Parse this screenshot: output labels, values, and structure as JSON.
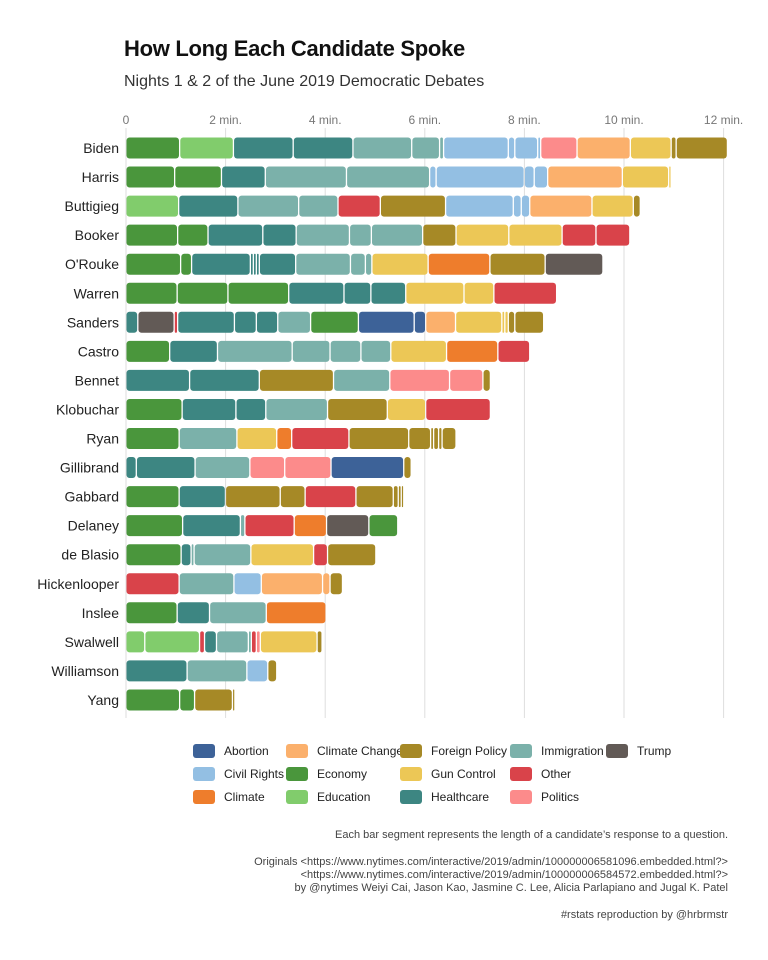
{
  "title": "How Long Each Candidate Spoke",
  "subtitle": "Nights 1 & 2 of the June 2019 Democratic Debates",
  "footnotes": {
    "line1": "Each bar segment represents the length of a candidate’s response to a question.",
    "line2": "Originals <https://www.nytimes.com/interactive/2019/admin/100000006581096.embedded.html?>",
    "line3": "<https://www.nytimes.com/interactive/2019/admin/100000006584572.embedded.html?>",
    "line4": "by @nytimes Weiyi Cai, Jason Kao, Jasmine C. Lee, Alicia Parlapiano and Jugal K. Patel",
    "line5": "#rstats reproduction by @hrbrmstr"
  },
  "colors": {
    "Abortion": "#3d6298",
    "Civil Rights": "#93bfe3",
    "Climate": "#ee7d2c",
    "Climate Change": "#fbb06c",
    "Economy": "#4a963c",
    "Education": "#81cc6c",
    "Foreign Policy": "#a68926",
    "Gun Control": "#ecc756",
    "Healthcare": "#3d8682",
    "Immigration": "#7bb1aa",
    "Other": "#d9434a",
    "Politics": "#fc8b8b",
    "Trump": "#625a56"
  },
  "legend": [
    [
      "Abortion",
      "Civil Rights",
      "Climate"
    ],
    [
      "Climate Change",
      "Economy",
      "Education"
    ],
    [
      "Foreign Policy",
      "Gun Control",
      "Healthcare"
    ],
    [
      "Immigration",
      "Other",
      "Politics"
    ],
    [
      "Trump"
    ]
  ],
  "chart_data": {
    "type": "bar",
    "orientation": "horizontal",
    "stacked": true,
    "x_unit": "minutes",
    "xlim": [
      0,
      12
    ],
    "x_ticks": [
      {
        "value": 0,
        "label": "0"
      },
      {
        "value": 2,
        "label": "2 min."
      },
      {
        "value": 4,
        "label": "4 min."
      },
      {
        "value": 6,
        "label": "6 min."
      },
      {
        "value": 8,
        "label": "8 min."
      },
      {
        "value": 10,
        "label": "10 min."
      },
      {
        "value": 12,
        "label": "12 min."
      }
    ],
    "grid": true,
    "legend_position": "bottom",
    "candidates": [
      {
        "name": "Biden",
        "segments": [
          [
            "Economy",
            1.08
          ],
          [
            "Education",
            1.08
          ],
          [
            "Healthcare",
            1.2
          ],
          [
            "Healthcare",
            1.2
          ],
          [
            "Immigration",
            1.18
          ],
          [
            "Immigration",
            0.56
          ],
          [
            "Immigration",
            0.08
          ],
          [
            "Civil Rights",
            1.3
          ],
          [
            "Civil Rights",
            0.13
          ],
          [
            "Civil Rights",
            0.46
          ],
          [
            "Civil Rights",
            0.06
          ],
          [
            "Politics",
            0.73
          ],
          [
            "Climate Change",
            1.07
          ],
          [
            "Gun Control",
            0.82
          ],
          [
            "Foreign Policy",
            0.1
          ],
          [
            "Foreign Policy",
            1.03
          ]
        ]
      },
      {
        "name": "Harris",
        "segments": [
          [
            "Economy",
            0.98
          ],
          [
            "Economy",
            0.94
          ],
          [
            "Healthcare",
            0.88
          ],
          [
            "Immigration",
            1.63
          ],
          [
            "Immigration",
            1.67
          ],
          [
            "Civil Rights",
            0.13
          ],
          [
            "Civil Rights",
            1.77
          ],
          [
            "Civil Rights",
            0.2
          ],
          [
            "Civil Rights",
            0.27
          ],
          [
            "Climate Change",
            1.5
          ],
          [
            "Gun Control",
            0.93
          ],
          [
            "Gun Control",
            0.04
          ]
        ]
      },
      {
        "name": "Buttigieg",
        "segments": [
          [
            "Education",
            1.06
          ],
          [
            "Healthcare",
            1.19
          ],
          [
            "Immigration",
            1.22
          ],
          [
            "Immigration",
            0.79
          ],
          [
            "Other",
            0.85
          ],
          [
            "Foreign Policy",
            1.31
          ],
          [
            "Civil Rights",
            1.36
          ],
          [
            "Civil Rights",
            0.16
          ],
          [
            "Civil Rights",
            0.17
          ],
          [
            "Climate Change",
            1.25
          ],
          [
            "Gun Control",
            0.83
          ],
          [
            "Foreign Policy",
            0.14
          ]
        ]
      },
      {
        "name": "Booker",
        "segments": [
          [
            "Economy",
            1.04
          ],
          [
            "Economy",
            0.61
          ],
          [
            "Healthcare",
            1.1
          ],
          [
            "Healthcare",
            0.67
          ],
          [
            "Immigration",
            1.07
          ],
          [
            "Immigration",
            0.44
          ],
          [
            "Immigration",
            1.03
          ],
          [
            "Foreign Policy",
            0.67
          ],
          [
            "Gun Control",
            1.06
          ],
          [
            "Gun Control",
            1.07
          ],
          [
            "Other",
            0.68
          ],
          [
            "Other",
            0.68
          ]
        ]
      },
      {
        "name": "O'Rouke",
        "segments": [
          [
            "Economy",
            1.1
          ],
          [
            "Economy",
            0.22
          ],
          [
            "Healthcare",
            1.18
          ],
          [
            "Healthcare",
            0.06
          ],
          [
            "Healthcare",
            0.06
          ],
          [
            "Healthcare",
            0.06
          ],
          [
            "Healthcare",
            0.73
          ],
          [
            "Immigration",
            1.1
          ],
          [
            "Immigration",
            0.3
          ],
          [
            "Immigration",
            0.13
          ],
          [
            "Gun Control",
            1.13
          ],
          [
            "Climate",
            1.24
          ],
          [
            "Foreign Policy",
            1.11
          ],
          [
            "Trump",
            1.16
          ]
        ]
      },
      {
        "name": "Warren",
        "segments": [
          [
            "Economy",
            1.03
          ],
          [
            "Economy",
            1.02
          ],
          [
            "Economy",
            1.22
          ],
          [
            "Healthcare",
            1.11
          ],
          [
            "Healthcare",
            0.54
          ],
          [
            "Healthcare",
            0.7
          ],
          [
            "Gun Control",
            1.17
          ],
          [
            "Gun Control",
            0.6
          ],
          [
            "Other",
            1.26
          ]
        ]
      },
      {
        "name": "Sanders",
        "segments": [
          [
            "Healthcare",
            0.24
          ],
          [
            "Trump",
            0.73
          ],
          [
            "Other",
            0.07
          ],
          [
            "Healthcare",
            1.14
          ],
          [
            "Healthcare",
            0.44
          ],
          [
            "Healthcare",
            0.43
          ],
          [
            "Immigration",
            0.66
          ],
          [
            "Economy",
            0.96
          ],
          [
            "Abortion",
            1.12
          ],
          [
            "Abortion",
            0.23
          ],
          [
            "Climate Change",
            0.6
          ],
          [
            "Gun Control",
            0.93
          ],
          [
            "Gun Control",
            0.06
          ],
          [
            "Gun Control",
            0.07
          ],
          [
            "Foreign Policy",
            0.13
          ],
          [
            "Foreign Policy",
            0.58
          ]
        ]
      },
      {
        "name": "Castro",
        "segments": [
          [
            "Economy",
            0.88
          ],
          [
            "Healthcare",
            0.96
          ],
          [
            "Immigration",
            1.5
          ],
          [
            "Immigration",
            0.76
          ],
          [
            "Immigration",
            0.62
          ],
          [
            "Immigration",
            0.6
          ],
          [
            "Gun Control",
            1.12
          ],
          [
            "Climate",
            1.03
          ],
          [
            "Other",
            0.64
          ]
        ]
      },
      {
        "name": "Bennet",
        "segments": [
          [
            "Healthcare",
            1.28
          ],
          [
            "Healthcare",
            1.4
          ],
          [
            "Foreign Policy",
            1.49
          ],
          [
            "Immigration",
            1.13
          ],
          [
            "Politics",
            1.2
          ],
          [
            "Politics",
            0.67
          ],
          [
            "Foreign Policy",
            0.15
          ]
        ]
      },
      {
        "name": "Klobuchar",
        "segments": [
          [
            "Economy",
            1.13
          ],
          [
            "Healthcare",
            1.08
          ],
          [
            "Healthcare",
            0.6
          ],
          [
            "Immigration",
            1.24
          ],
          [
            "Foreign Policy",
            1.2
          ],
          [
            "Gun Control",
            0.77
          ],
          [
            "Other",
            1.3
          ]
        ]
      },
      {
        "name": "Ryan",
        "segments": [
          [
            "Economy",
            1.07
          ],
          [
            "Immigration",
            1.16
          ],
          [
            "Gun Control",
            0.8
          ],
          [
            "Climate",
            0.3
          ],
          [
            "Other",
            1.15
          ],
          [
            "Foreign Policy",
            1.2
          ],
          [
            "Foreign Policy",
            0.44
          ],
          [
            "Foreign Policy",
            0.06
          ],
          [
            "Foreign Policy",
            0.1
          ],
          [
            "Foreign Policy",
            0.07
          ],
          [
            "Foreign Policy",
            0.28
          ]
        ]
      },
      {
        "name": "Gillibrand",
        "segments": [
          [
            "Healthcare",
            0.21
          ],
          [
            "Healthcare",
            1.18
          ],
          [
            "Immigration",
            1.1
          ],
          [
            "Politics",
            0.7
          ],
          [
            "Politics",
            0.93
          ],
          [
            "Abortion",
            1.46
          ],
          [
            "Foreign Policy",
            0.15
          ]
        ]
      },
      {
        "name": "Gabbard",
        "segments": [
          [
            "Economy",
            1.07
          ],
          [
            "Healthcare",
            0.93
          ],
          [
            "Foreign Policy",
            1.1
          ],
          [
            "Foreign Policy",
            0.5
          ],
          [
            "Other",
            1.02
          ],
          [
            "Foreign Policy",
            0.75
          ],
          [
            "Foreign Policy",
            0.1
          ],
          [
            "Foreign Policy",
            0.06
          ],
          [
            "Foreign Policy",
            0.04
          ]
        ]
      },
      {
        "name": "Delaney",
        "segments": [
          [
            "Economy",
            1.14
          ],
          [
            "Healthcare",
            1.16
          ],
          [
            "Immigration",
            0.09
          ],
          [
            "Other",
            0.99
          ],
          [
            "Climate",
            0.65
          ],
          [
            "Trump",
            0.85
          ],
          [
            "Economy",
            0.58
          ]
        ]
      },
      {
        "name": "de Blasio",
        "segments": [
          [
            "Economy",
            1.11
          ],
          [
            "Healthcare",
            0.2
          ],
          [
            "Immigration",
            0.06
          ],
          [
            "Immigration",
            1.14
          ],
          [
            "Gun Control",
            1.26
          ],
          [
            "Other",
            0.28
          ],
          [
            "Foreign Policy",
            0.97
          ]
        ]
      },
      {
        "name": "Hickenlooper",
        "segments": [
          [
            "Other",
            1.07
          ],
          [
            "Immigration",
            1.1
          ],
          [
            "Civil Rights",
            0.55
          ],
          [
            "Climate Change",
            1.23
          ],
          [
            "Climate Change",
            0.15
          ],
          [
            "Foreign Policy",
            0.25
          ]
        ]
      },
      {
        "name": "Inslee",
        "segments": [
          [
            "Economy",
            1.03
          ],
          [
            "Healthcare",
            0.65
          ],
          [
            "Immigration",
            1.14
          ],
          [
            "Climate",
            1.2
          ]
        ]
      },
      {
        "name": "Swalwell",
        "segments": [
          [
            "Education",
            0.38
          ],
          [
            "Education",
            1.1
          ],
          [
            "Other",
            0.1
          ],
          [
            "Healthcare",
            0.24
          ],
          [
            "Immigration",
            0.64
          ],
          [
            "Immigration",
            0.06
          ],
          [
            "Other",
            0.1
          ],
          [
            "Politics",
            0.08
          ],
          [
            "Gun Control",
            1.14
          ],
          [
            "Foreign Policy",
            0.1
          ]
        ]
      },
      {
        "name": "Williamson",
        "segments": [
          [
            "Healthcare",
            1.23
          ],
          [
            "Immigration",
            1.2
          ],
          [
            "Civil Rights",
            0.42
          ],
          [
            "Foreign Policy",
            0.18
          ]
        ]
      },
      {
        "name": "Yang",
        "segments": [
          [
            "Economy",
            1.08
          ],
          [
            "Economy",
            0.3
          ],
          [
            "Foreign Policy",
            0.76
          ],
          [
            "Foreign Policy",
            0.05
          ]
        ]
      }
    ]
  }
}
